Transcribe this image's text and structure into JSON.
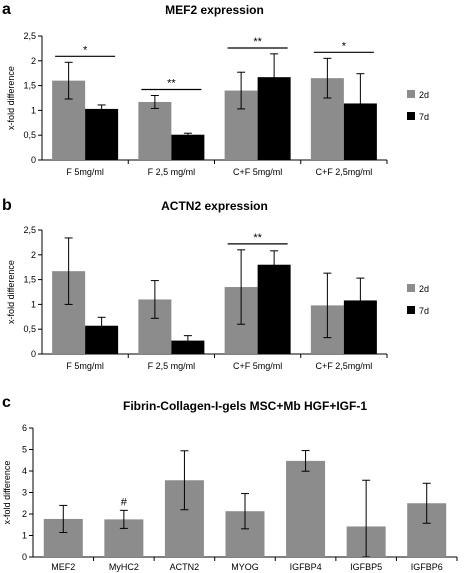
{
  "chart_data": [
    {
      "panel": "a",
      "type": "bar",
      "title": "MEF2 expression",
      "xlabel": "",
      "ylabel": "x-fold difference",
      "ylim": [
        0,
        2.5
      ],
      "yticks": [
        "0",
        "0,5",
        "1",
        "1,5",
        "2",
        "2,5"
      ],
      "categories": [
        "F 5mg/ml",
        "F 2,5 mg/ml",
        "C+F 5mg/ml",
        "C+F 2,5mg/ml"
      ],
      "series": [
        {
          "name": "2d",
          "color": "#8c8c8c",
          "values": [
            1.6,
            1.17,
            1.4,
            1.65
          ],
          "errors": [
            0.37,
            0.13,
            0.37,
            0.4
          ]
        },
        {
          "name": "7d",
          "color": "#000000",
          "values": [
            1.03,
            0.51,
            1.67,
            1.14
          ],
          "errors": [
            0.08,
            0.03,
            0.47,
            0.6
          ]
        }
      ],
      "significance": [
        {
          "category_index": 0,
          "label": "*"
        },
        {
          "category_index": 1,
          "label": "**"
        },
        {
          "category_index": 2,
          "label": "**"
        },
        {
          "category_index": 3,
          "label": "*"
        }
      ],
      "legend_position": "right"
    },
    {
      "panel": "b",
      "type": "bar",
      "title": "ACTN2 expression",
      "xlabel": "",
      "ylabel": "x-fold difference",
      "ylim": [
        0,
        2.5
      ],
      "yticks": [
        "0",
        "0,5",
        "1",
        "1,5",
        "2",
        "2,5"
      ],
      "categories": [
        "F 5mg/ml",
        "F 2,5 mg/ml",
        "C+F 5mg/ml",
        "C+F 2,5mg/ml"
      ],
      "series": [
        {
          "name": "2d",
          "color": "#8c8c8c",
          "values": [
            1.67,
            1.1,
            1.35,
            0.98
          ],
          "errors": [
            0.67,
            0.38,
            0.75,
            0.65
          ]
        },
        {
          "name": "7d",
          "color": "#000000",
          "values": [
            0.57,
            0.27,
            1.8,
            1.08
          ],
          "errors": [
            0.17,
            0.1,
            0.28,
            0.45
          ]
        }
      ],
      "significance": [
        {
          "category_index": 2,
          "label": "**"
        }
      ],
      "legend_position": "right"
    },
    {
      "panel": "c",
      "type": "bar",
      "title": "Fibrin-Collagen-I-gels MSC+Mb HGF+IGF-1",
      "xlabel": "",
      "ylabel": "x-fold difference",
      "ylim": [
        0,
        6
      ],
      "yticks": [
        "0",
        "1",
        "2",
        "3",
        "4",
        "5",
        "6"
      ],
      "categories": [
        "MEF2",
        "MyHC2",
        "ACTN2",
        "MYOG",
        "IGFBP4",
        "IGFBP5",
        "IGFBP6"
      ],
      "series": [
        {
          "name": "",
          "color": "#8c8c8c",
          "values": [
            1.77,
            1.75,
            3.57,
            2.13,
            4.47,
            1.42,
            2.5
          ],
          "errors": [
            0.63,
            0.42,
            1.37,
            0.82,
            0.48,
            2.15,
            0.93
          ]
        }
      ],
      "annotations": [
        {
          "category_index": 1,
          "label": "#"
        }
      ]
    }
  ]
}
